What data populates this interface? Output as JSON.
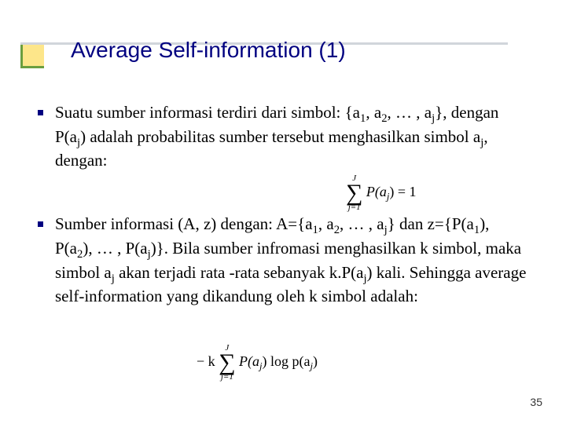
{
  "slide": {
    "title": "Average Self-information (1)",
    "page_number": "35",
    "title_color": "#000080",
    "bullet_color": "#000080",
    "accent_bg": "#fde68a",
    "accent_border": "#6b9e3f"
  },
  "bullets": {
    "item1": {
      "prefix": "Suatu sumber informasi terdiri dari simbol: {a",
      "s1": "1",
      "mid1": ", a",
      "s2": "2",
      "mid2": ", … , a",
      "s3": "j",
      "mid3": "}, dengan P(a",
      "s4": "j",
      "mid4": ") adalah probabilitas sumber tersebut menghasilkan simbol a",
      "s5": "j",
      "suffix": ", dengan:"
    },
    "item2": {
      "p1": "Sumber informasi (A, z) dengan: A={a",
      "s1": "1",
      "p2": ", a",
      "s2": "2",
      "p3": ", … , a",
      "s3": "j",
      "p4": "} dan z={P(a",
      "s4": "1",
      "p5": "), P(a",
      "s5": "2",
      "p6": "), … , P(a",
      "s6": "j",
      "p7": ")}.  Bila sumber infromasi menghasilkan k simbol, maka simbol a",
      "s7": "j",
      "p8": " akan terjadi rata -rata sebanyak k.P(a",
      "s8": "j",
      "p9": ") kali.  Sehingga average self-information yang dikandung oleh k simbol adalah:"
    }
  },
  "formulas": {
    "f1_upper": "J",
    "f1_lower": "j=1",
    "f1_body_a": "P(a",
    "f1_body_sub": "j",
    "f1_body_b": ") = 1",
    "f2_prefix": "− k",
    "f2_upper": "J",
    "f2_lower": "j=1",
    "f2_pa": "P(a",
    "f2_sub1": "j",
    "f2_b1": ") log p(a",
    "f2_sub2": "j",
    "f2_b2": ")"
  }
}
